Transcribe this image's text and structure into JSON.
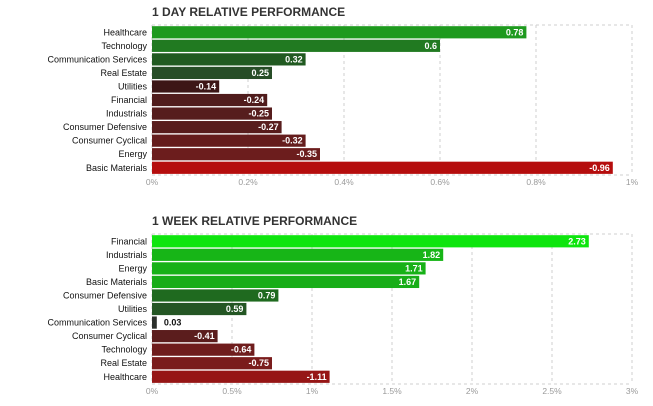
{
  "chart_data": [
    {
      "type": "bar",
      "orientation": "horizontal",
      "title": "1 DAY RELATIVE PERFORMANCE",
      "categories": [
        "Healthcare",
        "Technology",
        "Communication Services",
        "Real Estate",
        "Utilities",
        "Financial",
        "Industrials",
        "Consumer Defensive",
        "Consumer Cyclical",
        "Energy",
        "Basic Materials"
      ],
      "values": [
        0.78,
        0.6,
        0.32,
        0.25,
        -0.14,
        -0.24,
        -0.25,
        -0.27,
        -0.32,
        -0.35,
        -0.96
      ],
      "value_labels": [
        "0.78",
        "0.6",
        "0.32",
        "0.25",
        "-0.14",
        "-0.24",
        "-0.25",
        "-0.27",
        "-0.32",
        "-0.35",
        "-0.96"
      ],
      "colors": [
        "#1e9a1e",
        "#217a21",
        "#215a21",
        "#274d27",
        "#3c1616",
        "#501c1c",
        "#561d1d",
        "#581d1d",
        "#651d1d",
        "#6c1d1d",
        "#b50d0d"
      ],
      "xlim": [
        0,
        1
      ],
      "xticks": [
        0,
        0.2,
        0.4,
        0.6,
        0.8,
        1
      ],
      "xtick_labels": [
        "0%",
        "0.2%",
        "0.4%",
        "0.6%",
        "0.8%",
        "1%"
      ],
      "xlabel": "",
      "ylabel": "",
      "grid": true
    },
    {
      "type": "bar",
      "orientation": "horizontal",
      "title": "1 WEEK RELATIVE PERFORMANCE",
      "categories": [
        "Financial",
        "Industrials",
        "Energy",
        "Basic Materials",
        "Consumer Defensive",
        "Utilities",
        "Communication Services",
        "Consumer Cyclical",
        "Technology",
        "Real Estate",
        "Healthcare"
      ],
      "values": [
        2.73,
        1.82,
        1.71,
        1.67,
        0.79,
        0.59,
        0.03,
        -0.41,
        -0.64,
        -0.75,
        -1.11
      ],
      "value_labels": [
        "2.73",
        "1.82",
        "1.71",
        "1.67",
        "0.79",
        "0.59",
        "0.03",
        "-0.41",
        "-0.64",
        "-0.75",
        "-1.11"
      ],
      "colors": [
        "#0ee50e",
        "#17b517",
        "#17b117",
        "#18ad18",
        "#1f6a1f",
        "#245624",
        "#2b2f2b",
        "#5b1d1d",
        "#6f1d1d",
        "#7a1c1c",
        "#961616"
      ],
      "xlim": [
        0,
        3
      ],
      "xticks": [
        0,
        0.5,
        1,
        1.5,
        2,
        2.5,
        3
      ],
      "xtick_labels": [
        "0%",
        "0.5%",
        "1%",
        "1.5%",
        "2%",
        "2.5%",
        "3%"
      ],
      "xlabel": "",
      "ylabel": "",
      "grid": true
    }
  ]
}
